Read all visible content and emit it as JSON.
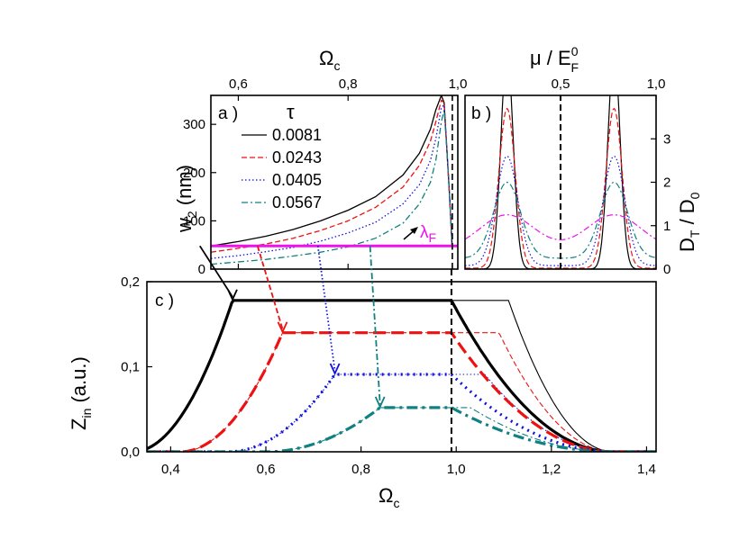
{
  "colors": {
    "black": "#000000",
    "red": "#ee1111",
    "blue": "#1111dd",
    "teal": "#118080",
    "magenta": "#ee11ee"
  },
  "chart_data": [
    {
      "panel": "a",
      "type": "line",
      "panel_label": "a )",
      "xlabel_main": "Ω",
      "xlabel_sub": "c",
      "ylabel_main": "w",
      "ylabel_sub": "2",
      "ylabel_rest": " (nm)",
      "xlim": [
        0.55,
        1.0
      ],
      "ylim": [
        0,
        360
      ],
      "xticks": [
        {
          "v": 0.6,
          "label": "0,6"
        },
        {
          "v": 0.8,
          "label": "0,8"
        },
        {
          "v": 1.0,
          "label": "1,0"
        }
      ],
      "yticks": [
        {
          "v": 0,
          "label": "0"
        },
        {
          "v": 100,
          "label": "100"
        },
        {
          "v": 200,
          "label": "200"
        },
        {
          "v": 300,
          "label": "300"
        }
      ],
      "legend_title": "τ",
      "legend_position": "upper-left",
      "series": [
        {
          "name": "0.0081",
          "color": "black",
          "dash": "solid",
          "x": [
            0.55,
            0.6,
            0.65,
            0.7,
            0.75,
            0.8,
            0.85,
            0.9,
            0.93,
            0.95,
            0.96,
            0.97,
            0.975,
            0.98,
            0.985,
            0.99
          ],
          "y": [
            48,
            57,
            68,
            82,
            100,
            122,
            150,
            195,
            240,
            290,
            330,
            360,
            345,
            250,
            150,
            40
          ]
        },
        {
          "name": "0.0243",
          "color": "red",
          "dash": "dashed",
          "x": [
            0.55,
            0.6,
            0.65,
            0.7,
            0.75,
            0.8,
            0.85,
            0.9,
            0.93,
            0.95,
            0.96,
            0.97,
            0.975,
            0.98,
            0.985,
            0.99
          ],
          "y": [
            35,
            43,
            52,
            64,
            80,
            100,
            128,
            170,
            215,
            265,
            305,
            350,
            345,
            250,
            150,
            40
          ]
        },
        {
          "name": "0.0405",
          "color": "blue",
          "dash": "dotted",
          "x": [
            0.55,
            0.6,
            0.65,
            0.7,
            0.75,
            0.8,
            0.85,
            0.9,
            0.93,
            0.95,
            0.96,
            0.97,
            0.975,
            0.98,
            0.985,
            0.99
          ],
          "y": [
            22,
            28,
            36,
            45,
            58,
            75,
            97,
            135,
            175,
            225,
            270,
            335,
            340,
            250,
            150,
            40
          ]
        },
        {
          "name": "0.0567",
          "color": "teal",
          "dash": "dashdot",
          "x": [
            0.55,
            0.6,
            0.65,
            0.7,
            0.75,
            0.8,
            0.85,
            0.9,
            0.93,
            0.95,
            0.96,
            0.97,
            0.975,
            0.98,
            0.985,
            0.99
          ],
          "y": [
            10,
            15,
            20,
            27,
            35,
            46,
            64,
            95,
            135,
            180,
            225,
            305,
            330,
            250,
            150,
            40
          ]
        }
      ],
      "lambda_line": {
        "y": 48,
        "label_main": "λ",
        "label_sub": "F",
        "color": "magenta"
      },
      "vline_x": 0.99
    },
    {
      "panel": "b",
      "type": "line",
      "panel_label": "b )",
      "xlabel_main": "μ / E",
      "xlabel_sup": "0",
      "xlabel_sub": "F",
      "ylabel_main": "D",
      "ylabel_sub": "T",
      "ylabel_rest": " / D",
      "ylabel_sub2": "0",
      "xlim": [
        0.0,
        1.0
      ],
      "ylim": [
        0,
        4
      ],
      "xticks": [
        {
          "v": 0.5,
          "label": "0,5"
        },
        {
          "v": 1.0,
          "label": "1,0"
        }
      ],
      "yticks": [
        {
          "v": 0,
          "label": "0"
        },
        {
          "v": 1,
          "label": "1"
        },
        {
          "v": 2,
          "label": "2"
        },
        {
          "v": 3,
          "label": "3"
        }
      ],
      "vline_x": 0.5,
      "series": [
        {
          "name": "0.0081",
          "color": "black",
          "dash": "solid",
          "peak": 5.0,
          "width": 0.045,
          "base": 0.0
        },
        {
          "name": "0.0243",
          "color": "red",
          "dash": "dashed",
          "peak": 3.7,
          "width": 0.06,
          "base": 0.02
        },
        {
          "name": "0.0405",
          "color": "blue",
          "dash": "dotted",
          "peak": 2.6,
          "width": 0.08,
          "base": 0.08
        },
        {
          "name": "0.0567",
          "color": "teal",
          "dash": "dashdot",
          "peak": 2.0,
          "width": 0.1,
          "base": 0.25
        },
        {
          "name": "λF",
          "color": "magenta",
          "dash": "dashdot",
          "peak": 1.25,
          "width": 0.2,
          "base": 0.45
        }
      ],
      "peak_positions": [
        0.22,
        0.78
      ]
    },
    {
      "panel": "c",
      "type": "line",
      "panel_label": "c )",
      "xlabel_main": "Ω",
      "xlabel_sub": "c",
      "ylabel_main": "Z",
      "ylabel_sub": "in",
      "ylabel_rest": " (a.u.)",
      "xlim": [
        0.35,
        1.42
      ],
      "ylim": [
        0,
        0.2
      ],
      "xticks": [
        {
          "v": 0.4,
          "label": "0,4"
        },
        {
          "v": 0.6,
          "label": "0,6"
        },
        {
          "v": 0.8,
          "label": "0,8"
        },
        {
          "v": 1.0,
          "label": "1,0"
        },
        {
          "v": 1.2,
          "label": "1,2"
        },
        {
          "v": 1.4,
          "label": "1,4"
        }
      ],
      "yticks": [
        {
          "v": 0,
          "label": "0,0"
        },
        {
          "v": 0.1,
          "label": "0,1"
        },
        {
          "v": 0.2,
          "label": "0,2"
        }
      ],
      "vline_x": 0.99,
      "series": [
        {
          "name": "0.0081",
          "color": "black",
          "dash": "solid",
          "plateau": 0.178,
          "x_rise": 0.53,
          "x_fall": 0.99,
          "x_fall_thin": 1.11,
          "rise_start": 0.32
        },
        {
          "name": "0.0243",
          "color": "red",
          "dash": "dashed",
          "plateau": 0.14,
          "x_rise": 0.635,
          "x_fall": 0.99,
          "x_fall_thin": 1.09,
          "rise_start": 0.42
        },
        {
          "name": "0.0405",
          "color": "blue",
          "dash": "dotted",
          "plateau": 0.091,
          "x_rise": 0.745,
          "x_fall": 0.99,
          "x_fall_thin": 1.06,
          "rise_start": 0.52
        },
        {
          "name": "0.0567",
          "color": "teal",
          "dash": "dashdot",
          "plateau": 0.052,
          "x_rise": 0.84,
          "x_fall": 0.99,
          "x_fall_thin": 1.03,
          "rise_start": 0.6
        }
      ],
      "arrows": [
        {
          "color": "black",
          "dash": "solid",
          "x": 0.53
        },
        {
          "color": "red",
          "dash": "dashed",
          "x": 0.635
        },
        {
          "color": "blue",
          "dash": "dotted",
          "x": 0.745
        },
        {
          "color": "teal",
          "dash": "dashdot",
          "x": 0.84
        }
      ]
    }
  ]
}
